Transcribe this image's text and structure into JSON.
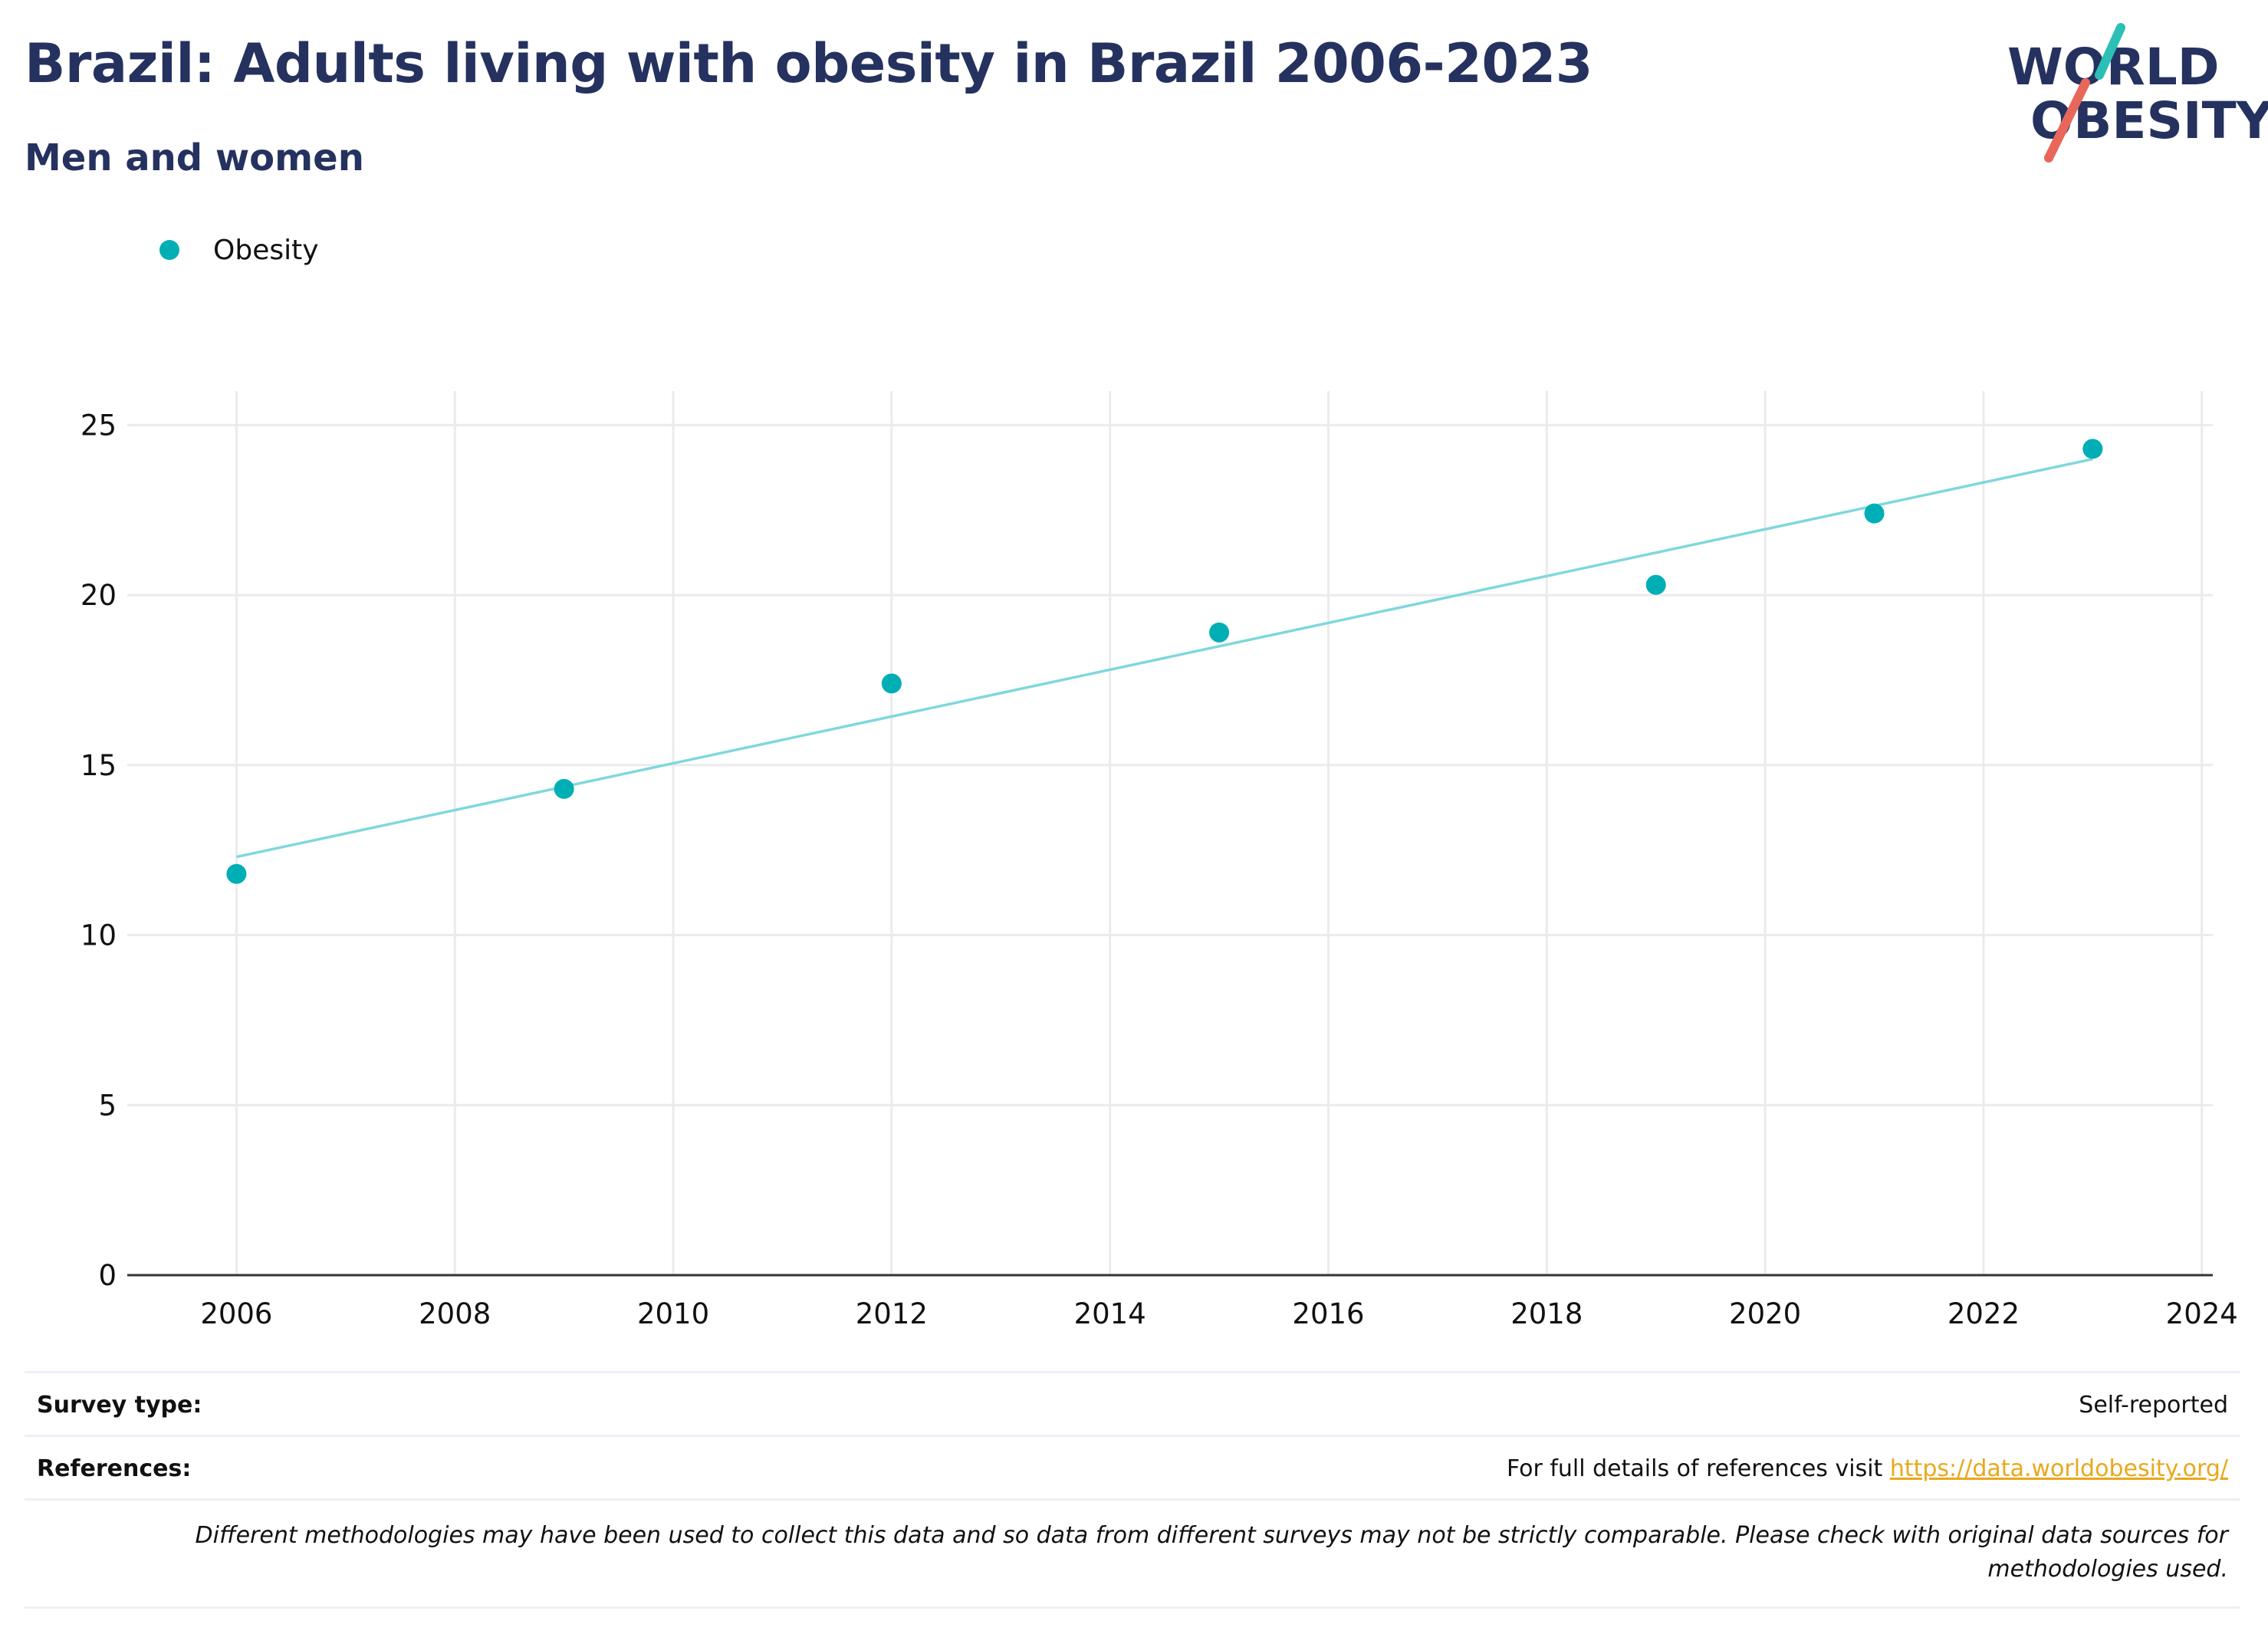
{
  "header": {
    "title": "Brazil: Adults living with obesity in Brazil 2006-2023",
    "subtitle": "Men and women"
  },
  "logo": {
    "line1": "WORLD",
    "line2": "OBESITY",
    "accent_teal": "#2cbfb5",
    "accent_coral": "#e8675a",
    "text_color": "#25325f"
  },
  "legend": {
    "items": [
      {
        "label": "Obesity",
        "color": "#00aeb5"
      }
    ]
  },
  "chart_data": {
    "type": "scatter",
    "title": "",
    "xlabel": "",
    "ylabel": "",
    "xlim": [
      2005.0,
      2024.1
    ],
    "ylim": [
      0,
      26
    ],
    "x_ticks": [
      2006,
      2008,
      2010,
      2012,
      2014,
      2016,
      2018,
      2020,
      2022,
      2024
    ],
    "y_ticks": [
      0,
      5,
      10,
      15,
      20,
      25
    ],
    "grid": true,
    "legend_position": "top-left",
    "series": [
      {
        "name": "Obesity",
        "color": "#00aeb5",
        "x": [
          2006,
          2009,
          2012,
          2015,
          2019,
          2021,
          2023
        ],
        "y": [
          11.8,
          14.3,
          17.4,
          18.9,
          20.3,
          22.4,
          24.3
        ]
      }
    ],
    "trendline": {
      "color": "#7fd8dc",
      "x": [
        2006,
        2023
      ],
      "y": [
        12.3,
        24.0
      ]
    }
  },
  "footer": {
    "survey_type_label": "Survey type:",
    "survey_type_value": "Self-reported",
    "references_label": "References:",
    "references_text": "For full details of references visit ",
    "references_link": "https://data.worldobesity.org/",
    "note": "Different methodologies may have been used to collect this data and so data from different surveys may not be strictly comparable. Please check with original data sources for methodologies used."
  }
}
